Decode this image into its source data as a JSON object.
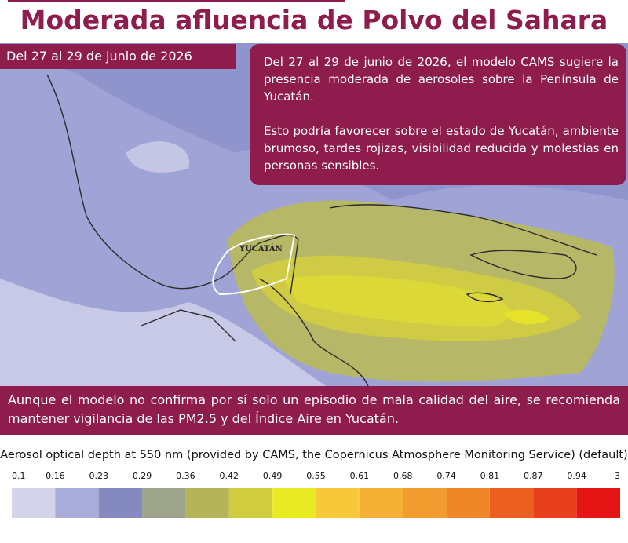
{
  "header": {
    "title": "Moderada afluencia de Polvo del Sahara",
    "date": "Del 27 al 29 de junio de 2026"
  },
  "summary": {
    "paragraphs": [
      "Del 27 al 29 de junio de 2026, el modelo CAMS sugiere la presencia moderada de aerosoles sobre la Península de Yucatán.",
      "Esto podría favorecer sobre el estado de Yucatán, ambiente brumoso, tardes rojizas, visibilidad reducida y molestias en personas sensibles."
    ]
  },
  "map": {
    "label": "YUCATÁN"
  },
  "note": "Aunque el modelo no confirma por sí solo un episodio de mala calidad del aire, se recomienda mantener vigilancia de las PM2.5 y del Índice Aire en Yucatán.",
  "legend": {
    "caption": "Aerosol optical depth at 550 nm (provided by CAMS, the Copernicus Atmosphere Monitoring Service) (default)",
    "ticks": [
      "0.1",
      "0.16",
      "0.23",
      "0.29",
      "0.36",
      "0.42",
      "0.49",
      "0.55",
      "0.61",
      "0.68",
      "0.74",
      "0.81",
      "0.87",
      "0.94",
      "3"
    ],
    "colors": [
      "#d3d3ea",
      "#a9acd8",
      "#8489c0",
      "#9ea48c",
      "#b5b45a",
      "#d0cc40",
      "#eaea23",
      "#f7c93a",
      "#f5b135",
      "#f29c2f",
      "#ef8729",
      "#eb6021",
      "#e8401c",
      "#e61515"
    ]
  }
}
